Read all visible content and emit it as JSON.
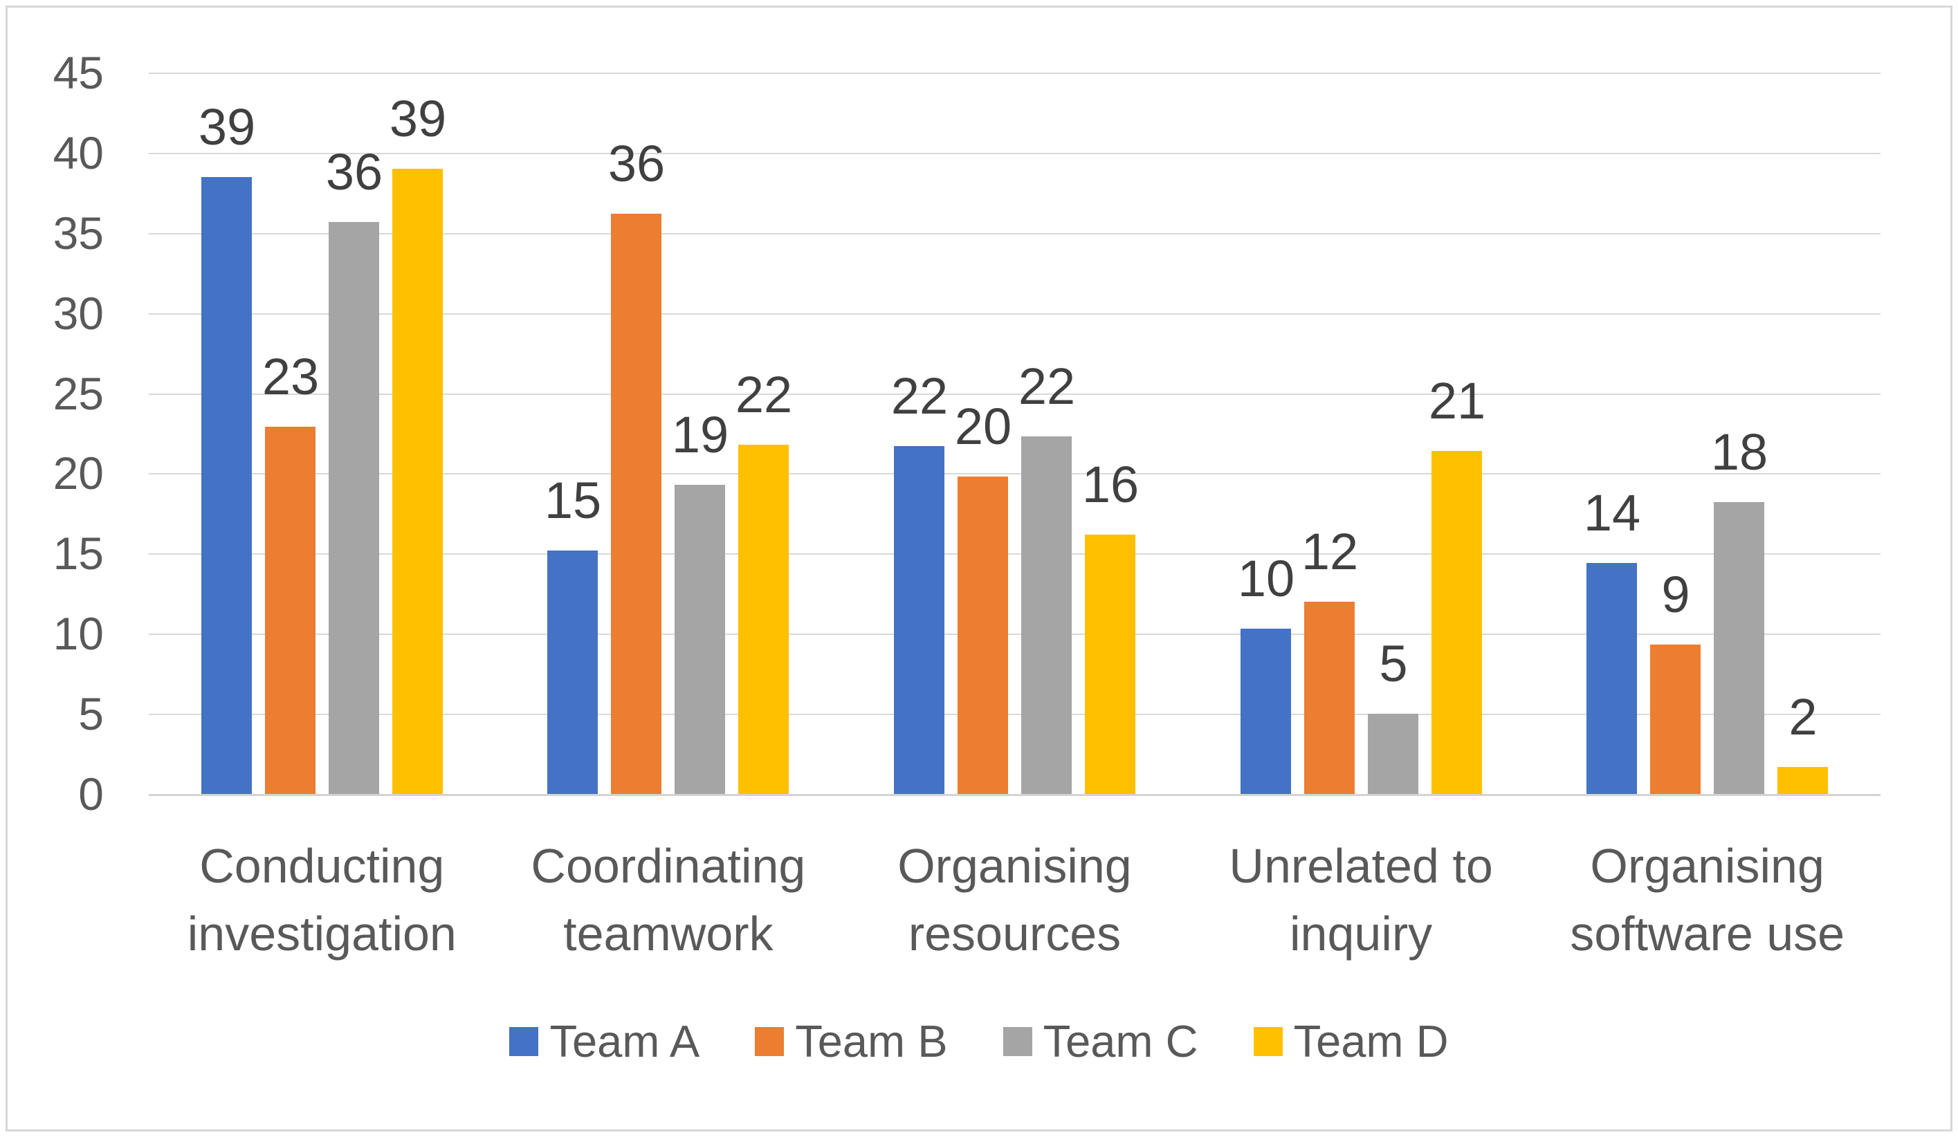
{
  "chart_data": {
    "type": "bar",
    "title": "",
    "xlabel": "",
    "ylabel": "",
    "categories": [
      "Conducting investigation",
      "Coordinating teamwork",
      "Organising resources",
      "Unrelated to inquiry",
      "Organising software use"
    ],
    "category_lines": [
      [
        "Conducting",
        "investigation"
      ],
      [
        "Coordinating",
        "teamwork"
      ],
      [
        "Organising",
        "resources"
      ],
      [
        "Unrelated to",
        "inquiry"
      ],
      [
        "Organising",
        "software use"
      ]
    ],
    "series": [
      {
        "name": "Team A",
        "color": "#4472C4",
        "values": [
          39,
          15,
          22,
          10,
          14
        ],
        "bar_heights": [
          38.5,
          15.2,
          21.7,
          10.3,
          14.4
        ]
      },
      {
        "name": "Team B",
        "color": "#ED7D31",
        "values": [
          23,
          36,
          20,
          12,
          9
        ],
        "bar_heights": [
          22.9,
          36.2,
          19.8,
          12.0,
          9.3
        ]
      },
      {
        "name": "Team C",
        "color": "#A5A5A5",
        "values": [
          36,
          19,
          22,
          5,
          18
        ],
        "bar_heights": [
          35.7,
          19.3,
          22.3,
          5.0,
          18.2
        ]
      },
      {
        "name": "Team D",
        "color": "#FFC000",
        "values": [
          39,
          22,
          16,
          21,
          2
        ],
        "bar_heights": [
          39.0,
          21.8,
          16.2,
          21.4,
          1.7
        ]
      }
    ],
    "y_axis": {
      "min": 0,
      "max": 45,
      "step": 5,
      "tick_labels": [
        "45",
        "40",
        "35",
        "30",
        "25",
        "20",
        "15",
        "10",
        "5",
        "0"
      ]
    },
    "legend": {
      "position": "bottom",
      "items": [
        "Team A",
        "Team B",
        "Team C",
        "Team D"
      ]
    },
    "grid": true,
    "data_labels_shown": true
  },
  "style": {
    "gridline_color": "#d9d9d9",
    "axis_line_color": "#d3d3d3",
    "tick_text_color": "#595959",
    "category_text_color": "#595959",
    "data_label_color": "#404040",
    "legend_text_color": "#595959",
    "background_color": "#ffffff",
    "border_color": "#d7d7d7"
  }
}
